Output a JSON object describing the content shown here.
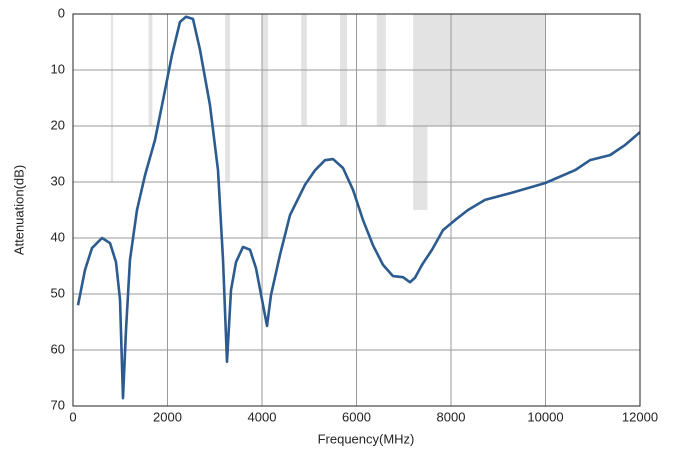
{
  "chart_data": {
    "type": "line",
    "xlabel": "Frequency(MHz)",
    "ylabel": "Attenuation(dB)",
    "xlim": [
      0,
      12000
    ],
    "xticks": [
      0,
      2000,
      4000,
      6000,
      8000,
      10000,
      12000
    ],
    "ylim": [
      0,
      70
    ],
    "yticks": [
      0,
      10,
      20,
      30,
      40,
      50,
      60,
      70
    ],
    "y_inverted": true,
    "grid": true,
    "band_color": "#e3e3e3",
    "bands": [
      {
        "x": [
          800,
          850
        ],
        "y": 30
      },
      {
        "x": [
          1600,
          1680
        ],
        "y": 20
      },
      {
        "x": [
          3220,
          3320
        ],
        "y": 30
      },
      {
        "x": [
          4000,
          4130
        ],
        "y": 40
      },
      {
        "x": [
          4830,
          4950
        ],
        "y": 20
      },
      {
        "x": [
          5650,
          5800
        ],
        "y": 20
      },
      {
        "x": [
          6430,
          6620
        ],
        "y": 20
      },
      {
        "x": [
          7200,
          10000
        ],
        "y": 20
      },
      {
        "x": [
          7200,
          7500
        ],
        "y": 35
      }
    ],
    "series": [
      {
        "color": "#2b5b8f",
        "x": [
          106,
          254,
          402,
          614,
          783,
          910,
          995,
          1058,
          1122,
          1206,
          1354,
          1524,
          1735,
          1905,
          2095,
          2265,
          2392,
          2540,
          2688,
          2899,
          3069,
          3175,
          3259,
          3344,
          3450,
          3598,
          3746,
          3873,
          4000,
          4106,
          4190,
          4381,
          4593,
          4910,
          5122,
          5333,
          5503,
          5714,
          5926,
          6138,
          6349,
          6561,
          6772,
          6984,
          7132,
          7238,
          7386,
          7598,
          7831,
          8085,
          8360,
          8720,
          9249,
          9989,
          10624,
          10942,
          11365,
          11683,
          12000
        ],
        "values": [
          52,
          45.7,
          41.8,
          40,
          40.9,
          44.3,
          51,
          68.6,
          56.4,
          43.9,
          35,
          28.8,
          22.5,
          15.4,
          7.3,
          1.4,
          0.5,
          0.9,
          6.4,
          16.3,
          27.9,
          43.9,
          62.1,
          49.3,
          44.3,
          41.6,
          42.1,
          45.4,
          51,
          55.7,
          50.2,
          43,
          35.9,
          30.5,
          27.9,
          26.1,
          25.9,
          27.5,
          31.4,
          36.8,
          41.3,
          44.8,
          46.8,
          47,
          47.9,
          47.1,
          44.8,
          42.1,
          38.6,
          36.8,
          35,
          33.2,
          32,
          30.2,
          27.9,
          26.1,
          25.2,
          23.4,
          21.1
        ]
      }
    ]
  }
}
